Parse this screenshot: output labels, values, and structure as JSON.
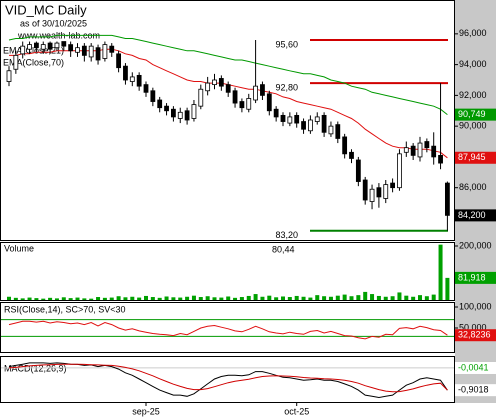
{
  "chart_data": {
    "type": "candlestick",
    "title": "VID_MC Daily",
    "subtitle": "as of 30/10/2025",
    "watermark": "www.wealth-lab.com",
    "categories": [
      null,
      null,
      null,
      null,
      null,
      null,
      null,
      null,
      null,
      null,
      null,
      null,
      null,
      null,
      null,
      null,
      null,
      null,
      null,
      null,
      "sep-25",
      null,
      null,
      null,
      null,
      null,
      null,
      null,
      null,
      null,
      null,
      null,
      null,
      null,
      null,
      null,
      null,
      null,
      null,
      null,
      null,
      null,
      "oct-25",
      null,
      null,
      null,
      null,
      null,
      null,
      null,
      null,
      null,
      null,
      null,
      null,
      null,
      null,
      null,
      null,
      null,
      null,
      null,
      null,
      null,
      null
    ],
    "open": [
      92.9,
      93.7,
      94.7,
      95.0,
      95.4,
      95.0,
      95.4,
      95.1,
      95.5,
      95.3,
      94.8,
      95.2,
      94.5,
      95.1,
      94.4,
      95.2,
      94.7,
      93.9,
      92.9,
      93.3,
      92.7,
      92.3,
      91.7,
      91.3,
      91.1,
      90.5,
      91.0,
      90.5,
      91.3,
      92.3,
      92.7,
      93.1,
      92.7,
      92.3,
      91.6,
      91.1,
      91.7,
      92.7,
      92.1,
      91.1,
      90.7,
      90.2,
      90.7,
      90.3,
      89.7,
      90.3,
      90.7,
      89.5,
      90.1,
      89.3,
      88.3,
      87.8,
      86.5,
      85.1,
      86.0,
      85.3,
      86.3,
      86.0,
      88.3,
      88.7,
      88.0,
      89.0,
      88.7,
      88.1,
      86.3
    ],
    "high": [
      93.9,
      94.9,
      95.5,
      95.5,
      95.5,
      95.5,
      95.5,
      95.5,
      95.5,
      95.5,
      95.4,
      95.4,
      95.4,
      95.3,
      95.5,
      95.4,
      94.9,
      94.1,
      93.5,
      93.5,
      92.9,
      92.5,
      91.9,
      91.5,
      91.3,
      91.2,
      91.2,
      91.7,
      92.7,
      93.2,
      93.4,
      93.3,
      92.9,
      92.5,
      91.8,
      92.1,
      95.6,
      92.9,
      92.3,
      91.3,
      90.9,
      90.9,
      90.9,
      90.5,
      90.7,
      90.9,
      90.9,
      90.3,
      90.3,
      89.5,
      88.5,
      88.0,
      86.7,
      86.2,
      86.3,
      86.5,
      86.6,
      88.5,
      89.0,
      88.9,
      89.3,
      89.2,
      89.6,
      92.8,
      86.4
    ],
    "low": [
      92.6,
      93.4,
      94.4,
      94.7,
      94.8,
      94.7,
      94.7,
      94.9,
      94.9,
      94.5,
      94.5,
      94.2,
      94.2,
      94.0,
      94.2,
      94.5,
      93.5,
      92.7,
      92.6,
      92.3,
      91.9,
      91.3,
      90.9,
      90.7,
      90.3,
      90.2,
      90.1,
      90.3,
      91.1,
      92.0,
      92.4,
      92.3,
      91.9,
      91.2,
      90.9,
      90.9,
      91.5,
      91.7,
      90.7,
      90.3,
      90.0,
      90.0,
      89.9,
      89.5,
      89.5,
      90.1,
      89.3,
      89.3,
      88.9,
      87.9,
      87.6,
      86.1,
      84.9,
      84.6,
      84.7,
      85.0,
      85.7,
      85.8,
      88.0,
      87.8,
      87.7,
      88.3,
      87.5,
      87.2,
      83.2
    ],
    "close": [
      93.6,
      94.6,
      95.2,
      95.3,
      95.1,
      95.3,
      95.0,
      95.4,
      95.2,
      94.9,
      95.1,
      94.6,
      95.2,
      94.3,
      95.3,
      94.8,
      93.8,
      93.0,
      93.2,
      92.6,
      92.2,
      91.6,
      91.2,
      91.0,
      90.6,
      90.9,
      90.4,
      91.4,
      92.4,
      92.8,
      93.0,
      92.6,
      92.2,
      91.5,
      91.2,
      91.8,
      92.6,
      92.0,
      91.0,
      90.6,
      90.3,
      90.6,
      90.2,
      89.8,
      90.4,
      90.6,
      89.6,
      90.0,
      89.2,
      88.2,
      87.9,
      86.4,
      85.2,
      85.9,
      85.4,
      86.2,
      86.0,
      88.2,
      88.6,
      88.1,
      88.9,
      88.6,
      88.0,
      87.6,
      84.2
    ],
    "close_label": "84,200",
    "ylim": [
      82.6,
      98.2
    ],
    "yticks": [
      {
        "value": 86,
        "label": "86,000"
      },
      {
        "value": 90,
        "label": "90,000"
      },
      {
        "value": 92,
        "label": "92,000"
      },
      {
        "value": 94,
        "label": "94,000"
      },
      {
        "value": 96,
        "label": "96,000"
      }
    ],
    "overlays": [
      {
        "name": "EMA(Close,21)",
        "color": "#e01010",
        "last_label": "87,945",
        "values": [
          94.6,
          94.6,
          94.7,
          94.7,
          94.8,
          94.8,
          94.8,
          94.9,
          94.9,
          94.9,
          94.9,
          94.9,
          94.9,
          94.9,
          95.0,
          95.0,
          94.9,
          94.7,
          94.6,
          94.4,
          94.3,
          94.0,
          93.8,
          93.6,
          93.4,
          93.2,
          93.0,
          92.9,
          92.9,
          92.8,
          92.8,
          92.8,
          92.7,
          92.6,
          92.5,
          92.4,
          92.4,
          92.3,
          92.2,
          92.1,
          91.9,
          91.8,
          91.6,
          91.5,
          91.4,
          91.3,
          91.2,
          91.1,
          90.9,
          90.7,
          90.5,
          90.2,
          89.8,
          89.5,
          89.2,
          88.9,
          88.7,
          88.6,
          88.6,
          88.5,
          88.5,
          88.5,
          88.4,
          88.3,
          87.945
        ]
      },
      {
        "name": "EMA(Close,70)",
        "color": "#009900",
        "last_label": "90,749",
        "values": [
          95.6,
          95.7,
          95.7,
          95.8,
          95.8,
          95.8,
          95.8,
          95.9,
          95.9,
          95.9,
          95.9,
          95.9,
          95.9,
          95.9,
          95.9,
          95.9,
          95.8,
          95.7,
          95.7,
          95.6,
          95.5,
          95.4,
          95.3,
          95.2,
          95.1,
          95.0,
          94.9,
          94.9,
          94.8,
          94.7,
          94.6,
          94.5,
          94.4,
          94.3,
          94.3,
          94.2,
          94.1,
          94.0,
          93.9,
          93.8,
          93.7,
          93.6,
          93.5,
          93.4,
          93.4,
          93.3,
          93.2,
          93.0,
          92.9,
          92.8,
          92.6,
          92.5,
          92.4,
          92.2,
          92.1,
          92.0,
          91.9,
          91.8,
          91.7,
          91.6,
          91.5,
          91.4,
          91.3,
          91.1,
          90.749
        ]
      }
    ],
    "levels": [
      {
        "value": 95.6,
        "label": "95,60",
        "color": "#d00000"
      },
      {
        "value": 92.8,
        "label": "92,80",
        "color": "#d00000"
      },
      {
        "value": 83.2,
        "label": "83,20",
        "color": "#008000"
      }
    ],
    "volume": {
      "name": "Volume",
      "color": "#00a000",
      "annotation": "80,44",
      "last_label": "81,918",
      "ylim": [
        0,
        200000
      ],
      "yticks": [
        {
          "value": 200000,
          "label": "200,000"
        }
      ],
      "values": [
        12000,
        8000,
        6000,
        9000,
        7000,
        5000,
        8000,
        6000,
        10000,
        7000,
        9000,
        6000,
        5000,
        11000,
        8000,
        9000,
        14000,
        10000,
        12000,
        9000,
        15000,
        11000,
        8000,
        13000,
        10000,
        9000,
        12000,
        16000,
        11000,
        14000,
        10000,
        9000,
        13000,
        8000,
        11000,
        15000,
        22000,
        12000,
        16000,
        10000,
        13000,
        11000,
        15000,
        12000,
        9000,
        18000,
        14000,
        12000,
        16000,
        20000,
        14000,
        18000,
        30000,
        22000,
        15000,
        12000,
        14000,
        28000,
        16000,
        12000,
        18000,
        14000,
        20000,
        205000,
        81918
      ]
    },
    "rsi": {
      "name": "RSI(Close,14), SC>70, SV<30",
      "color": "#e01010",
      "band_color": "#009900",
      "bands": [
        70,
        30
      ],
      "last_label": "32,8236",
      "ylim": [
        0,
        100
      ],
      "yticks": [
        {
          "value": 50,
          "label": "50,000"
        },
        {
          "value": 100,
          "label": "100,000"
        }
      ],
      "values": [
        58,
        62,
        66,
        66,
        64,
        66,
        62,
        65,
        63,
        60,
        62,
        58,
        63,
        55,
        63,
        58,
        50,
        45,
        48,
        43,
        40,
        37,
        35,
        34,
        32,
        37,
        34,
        42,
        50,
        54,
        56,
        52,
        48,
        43,
        41,
        47,
        54,
        48,
        41,
        38,
        36,
        40,
        37,
        35,
        42,
        44,
        38,
        42,
        37,
        32,
        31,
        27,
        24,
        30,
        28,
        35,
        34,
        49,
        51,
        48,
        54,
        51,
        46,
        44,
        32.8236
      ]
    },
    "macd": {
      "name": "MACD(12,26,9)",
      "ylim": [
        -1.3,
        0.4
      ],
      "histogram": {
        "value": -0.0041,
        "label": "-0,0041",
        "color": "#00a000"
      },
      "series": [
        {
          "color": "#000000",
          "last_label": "-0,9018",
          "values": [
            0.05,
            0.1,
            0.15,
            0.2,
            0.2,
            0.2,
            0.18,
            0.2,
            0.18,
            0.15,
            0.14,
            0.1,
            0.12,
            0.05,
            0.1,
            0.05,
            -0.05,
            -0.2,
            -0.3,
            -0.45,
            -0.6,
            -0.75,
            -0.9,
            -1.0,
            -1.1,
            -1.1,
            -1.15,
            -1.05,
            -0.85,
            -0.65,
            -0.45,
            -0.35,
            -0.3,
            -0.3,
            -0.32,
            -0.28,
            -0.15,
            -0.15,
            -0.22,
            -0.3,
            -0.38,
            -0.4,
            -0.45,
            -0.5,
            -0.48,
            -0.45,
            -0.5,
            -0.5,
            -0.55,
            -0.65,
            -0.75,
            -0.9,
            -1.1,
            -1.15,
            -1.2,
            -1.15,
            -1.1,
            -0.9,
            -0.7,
            -0.6,
            -0.45,
            -0.4,
            -0.45,
            -0.5,
            -0.9018
          ]
        },
        {
          "color": "#d00000",
          "values": [
            0.0,
            0.02,
            0.05,
            0.08,
            0.1,
            0.12,
            0.13,
            0.14,
            0.15,
            0.15,
            0.15,
            0.14,
            0.13,
            0.12,
            0.11,
            0.1,
            0.07,
            0.02,
            -0.04,
            -0.12,
            -0.22,
            -0.32,
            -0.44,
            -0.55,
            -0.66,
            -0.75,
            -0.83,
            -0.88,
            -0.88,
            -0.84,
            -0.76,
            -0.68,
            -0.6,
            -0.54,
            -0.5,
            -0.46,
            -0.4,
            -0.35,
            -0.33,
            -0.32,
            -0.33,
            -0.34,
            -0.36,
            -0.39,
            -0.41,
            -0.42,
            -0.44,
            -0.45,
            -0.47,
            -0.5,
            -0.55,
            -0.62,
            -0.72,
            -0.8,
            -0.88,
            -0.94,
            -0.97,
            -0.96,
            -0.91,
            -0.85,
            -0.77,
            -0.7,
            -0.65,
            -0.62,
            -0.8977
          ]
        }
      ]
    }
  }
}
